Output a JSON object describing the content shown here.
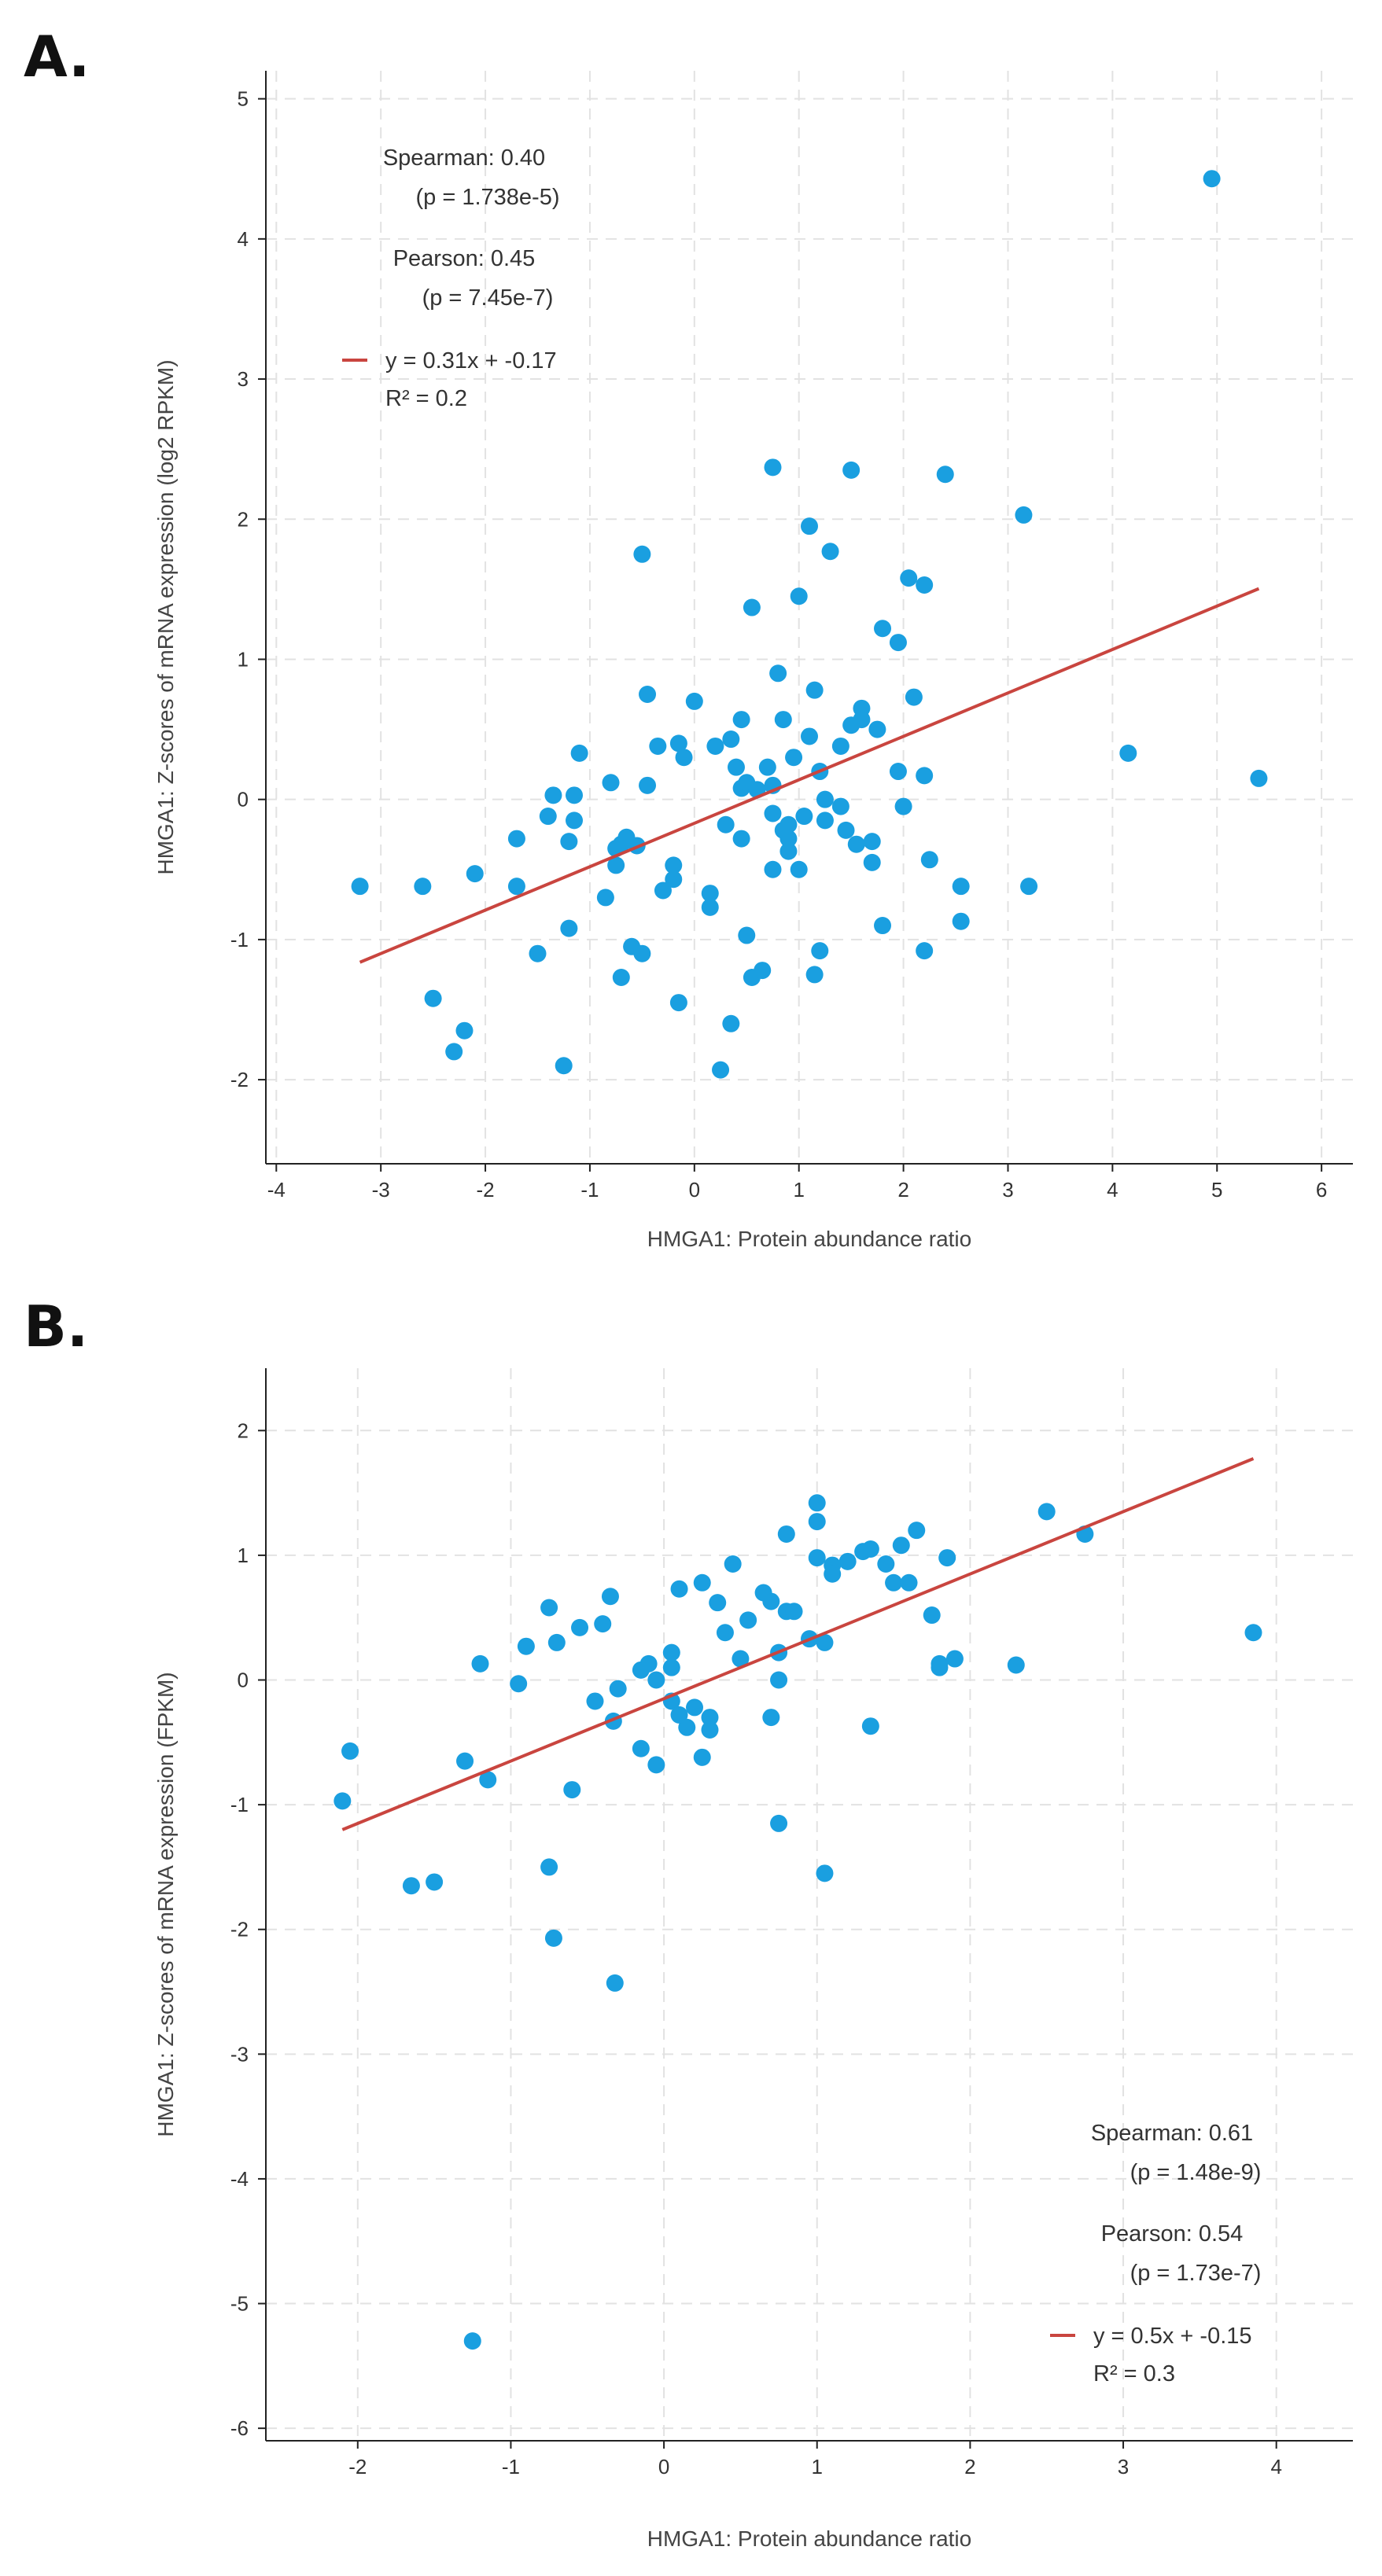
{
  "chart_data": [
    {
      "panel": "A.",
      "type": "scatter",
      "xlabel": "HMGA1: Protein abundance ratio",
      "ylabel": "HMGA1: Z-scores of mRNA expression (log2 RPKM)",
      "xlim": [
        -4.1,
        6.3
      ],
      "ylim": [
        -2.6,
        5.2
      ],
      "xticks": [
        -4,
        -3,
        -2,
        -1,
        0,
        1,
        2,
        3,
        4,
        5,
        6
      ],
      "yticks": [
        -2,
        -1,
        0,
        1,
        2,
        3,
        4,
        5
      ],
      "stats": {
        "spearman": "Spearman: 0.40",
        "spearman_p": "(p = 1.738e-5)",
        "pearson": "Pearson: 0.45",
        "pearson_p": "(p = 7.45e-7)",
        "equation": "y = 0.31x + -0.17",
        "r2": "R² = 0.2"
      },
      "regression": {
        "slope": 0.31,
        "intercept": -0.17,
        "x_range": [
          -3.2,
          5.4
        ]
      },
      "point_color": "#1a9fe0",
      "line_color": "#c9453f",
      "points": [
        [
          -3.2,
          -0.62
        ],
        [
          -2.6,
          -0.62
        ],
        [
          -2.5,
          -1.42
        ],
        [
          -2.3,
          -1.8
        ],
        [
          -2.2,
          -1.65
        ],
        [
          -2.1,
          -0.53
        ],
        [
          -1.7,
          -0.62
        ],
        [
          -1.7,
          -0.28
        ],
        [
          -1.5,
          -1.1
        ],
        [
          -1.4,
          -0.12
        ],
        [
          -1.35,
          0.03
        ],
        [
          -1.25,
          -1.9
        ],
        [
          -1.2,
          -0.3
        ],
        [
          -1.2,
          -0.92
        ],
        [
          -1.15,
          0.03
        ],
        [
          -1.15,
          -0.15
        ],
        [
          -1.1,
          0.33
        ],
        [
          -0.85,
          -0.7
        ],
        [
          -0.8,
          0.12
        ],
        [
          -0.75,
          -0.35
        ],
        [
          -0.75,
          -0.47
        ],
        [
          -0.7,
          -1.27
        ],
        [
          -0.7,
          -0.32
        ],
        [
          -0.65,
          -0.27
        ],
        [
          -0.6,
          -1.05
        ],
        [
          -0.55,
          -0.33
        ],
        [
          -0.5,
          1.75
        ],
        [
          -0.5,
          -1.1
        ],
        [
          -0.45,
          0.75
        ],
        [
          -0.45,
          0.1
        ],
        [
          -0.35,
          0.38
        ],
        [
          -0.3,
          -0.65
        ],
        [
          -0.2,
          -0.47
        ],
        [
          -0.2,
          -0.57
        ],
        [
          -0.15,
          -1.45
        ],
        [
          -0.15,
          0.4
        ],
        [
          -0.1,
          0.3
        ],
        [
          0.0,
          0.7
        ],
        [
          0.15,
          -0.67
        ],
        [
          0.15,
          -0.77
        ],
        [
          0.2,
          0.38
        ],
        [
          0.25,
          -1.93
        ],
        [
          0.3,
          -0.18
        ],
        [
          0.35,
          -1.6
        ],
        [
          0.35,
          0.43
        ],
        [
          0.4,
          0.23
        ],
        [
          0.45,
          0.57
        ],
        [
          0.45,
          0.08
        ],
        [
          0.45,
          -0.28
        ],
        [
          0.5,
          -0.97
        ],
        [
          0.5,
          0.12
        ],
        [
          0.55,
          1.37
        ],
        [
          0.55,
          -1.27
        ],
        [
          0.6,
          0.07
        ],
        [
          0.65,
          -1.22
        ],
        [
          0.7,
          0.23
        ],
        [
          0.75,
          0.1
        ],
        [
          0.75,
          -0.1
        ],
        [
          0.75,
          -0.5
        ],
        [
          0.75,
          2.37
        ],
        [
          0.8,
          0.9
        ],
        [
          0.85,
          0.57
        ],
        [
          0.85,
          -0.22
        ],
        [
          0.9,
          -0.28
        ],
        [
          0.9,
          -0.37
        ],
        [
          0.9,
          -0.18
        ],
        [
          0.95,
          0.3
        ],
        [
          1.0,
          -0.5
        ],
        [
          1.0,
          1.45
        ],
        [
          1.05,
          -0.12
        ],
        [
          1.1,
          1.95
        ],
        [
          1.1,
          0.45
        ],
        [
          1.15,
          0.78
        ],
        [
          1.15,
          -1.25
        ],
        [
          1.2,
          0.2
        ],
        [
          1.2,
          -1.08
        ],
        [
          1.25,
          0.0
        ],
        [
          1.25,
          -0.15
        ],
        [
          1.3,
          1.77
        ],
        [
          1.4,
          0.38
        ],
        [
          1.4,
          -0.05
        ],
        [
          1.45,
          -0.22
        ],
        [
          1.5,
          2.35
        ],
        [
          1.5,
          0.53
        ],
        [
          1.55,
          -0.32
        ],
        [
          1.6,
          0.65
        ],
        [
          1.6,
          0.57
        ],
        [
          1.7,
          -0.3
        ],
        [
          1.7,
          -0.45
        ],
        [
          1.75,
          0.5
        ],
        [
          1.8,
          1.22
        ],
        [
          1.8,
          -0.9
        ],
        [
          1.95,
          1.12
        ],
        [
          1.95,
          0.2
        ],
        [
          2.0,
          -0.05
        ],
        [
          2.05,
          1.58
        ],
        [
          2.1,
          0.73
        ],
        [
          2.2,
          1.53
        ],
        [
          2.2,
          0.17
        ],
        [
          2.2,
          -1.08
        ],
        [
          2.25,
          -0.43
        ],
        [
          2.4,
          2.32
        ],
        [
          2.55,
          -0.62
        ],
        [
          2.55,
          -0.87
        ],
        [
          3.15,
          2.03
        ],
        [
          3.2,
          -0.62
        ],
        [
          4.15,
          0.33
        ],
        [
          4.95,
          4.43
        ],
        [
          5.4,
          0.15
        ]
      ]
    },
    {
      "panel": "B.",
      "type": "scatter",
      "xlabel": "HMGA1: Protein abundance ratio",
      "ylabel": "HMGA1: Z-scores of mRNA expression (FPKM)",
      "xlim": [
        -2.6,
        4.5
      ],
      "ylim": [
        -6.1,
        2.5
      ],
      "xticks": [
        -2,
        -1,
        0,
        1,
        2,
        3,
        4
      ],
      "yticks": [
        -6,
        -5,
        -4,
        -3,
        -2,
        -1,
        0,
        1,
        2
      ],
      "stats": {
        "spearman": "Spearman: 0.61",
        "spearman_p": "(p = 1.48e-9)",
        "pearson": "Pearson: 0.54",
        "pearson_p": "(p = 1.73e-7)",
        "equation": "y = 0.5x + -0.15",
        "r2": "R² = 0.3"
      },
      "regression": {
        "slope": 0.5,
        "intercept": -0.15,
        "x_range": [
          -2.1,
          3.85
        ]
      },
      "point_color": "#1a9fe0",
      "line_color": "#c9453f",
      "points": [
        [
          -2.1,
          -0.97
        ],
        [
          -2.05,
          -0.57
        ],
        [
          -1.65,
          -1.65
        ],
        [
          -1.5,
          -1.62
        ],
        [
          -1.3,
          -0.65
        ],
        [
          -1.25,
          -5.3
        ],
        [
          -1.2,
          0.13
        ],
        [
          -1.15,
          -0.8
        ],
        [
          -0.95,
          -0.03
        ],
        [
          -0.9,
          0.27
        ],
        [
          -0.75,
          0.58
        ],
        [
          -0.75,
          -1.5
        ],
        [
          -0.72,
          -2.07
        ],
        [
          -0.7,
          0.3
        ],
        [
          -0.6,
          -0.88
        ],
        [
          -0.55,
          0.42
        ],
        [
          -0.45,
          -0.17
        ],
        [
          -0.4,
          0.45
        ],
        [
          -0.35,
          0.67
        ],
        [
          -0.33,
          -0.33
        ],
        [
          -0.32,
          -2.43
        ],
        [
          -0.3,
          -0.07
        ],
        [
          -0.15,
          0.08
        ],
        [
          -0.15,
          -0.55
        ],
        [
          -0.1,
          0.13
        ],
        [
          -0.05,
          -0.68
        ],
        [
          -0.05,
          0.0
        ],
        [
          0.05,
          0.1
        ],
        [
          0.05,
          0.22
        ],
        [
          0.05,
          -0.17
        ],
        [
          0.1,
          -0.28
        ],
        [
          0.1,
          0.73
        ],
        [
          0.15,
          -0.38
        ],
        [
          0.2,
          -0.22
        ],
        [
          0.25,
          0.78
        ],
        [
          0.25,
          -0.62
        ],
        [
          0.3,
          -0.3
        ],
        [
          0.3,
          -0.4
        ],
        [
          0.35,
          0.62
        ],
        [
          0.4,
          0.38
        ],
        [
          0.45,
          0.93
        ],
        [
          0.5,
          0.17
        ],
        [
          0.55,
          0.48
        ],
        [
          0.65,
          0.7
        ],
        [
          0.7,
          0.63
        ],
        [
          0.7,
          -0.3
        ],
        [
          0.75,
          0.0
        ],
        [
          0.75,
          0.22
        ],
        [
          0.75,
          -1.15
        ],
        [
          0.8,
          1.17
        ],
        [
          0.8,
          0.55
        ],
        [
          0.85,
          0.55
        ],
        [
          0.95,
          0.33
        ],
        [
          1.0,
          1.42
        ],
        [
          1.0,
          1.27
        ],
        [
          1.0,
          0.98
        ],
        [
          1.05,
          0.3
        ],
        [
          1.05,
          -1.55
        ],
        [
          1.1,
          0.92
        ],
        [
          1.1,
          0.85
        ],
        [
          1.2,
          0.95
        ],
        [
          1.3,
          1.03
        ],
        [
          1.35,
          1.05
        ],
        [
          1.35,
          -0.37
        ],
        [
          1.45,
          0.93
        ],
        [
          1.5,
          0.78
        ],
        [
          1.55,
          1.08
        ],
        [
          1.6,
          0.78
        ],
        [
          1.65,
          1.2
        ],
        [
          1.75,
          0.52
        ],
        [
          1.8,
          0.1
        ],
        [
          1.8,
          0.13
        ],
        [
          1.85,
          0.98
        ],
        [
          1.9,
          0.17
        ],
        [
          2.3,
          0.12
        ],
        [
          2.5,
          1.35
        ],
        [
          2.75,
          1.17
        ],
        [
          3.85,
          0.38
        ]
      ]
    }
  ]
}
